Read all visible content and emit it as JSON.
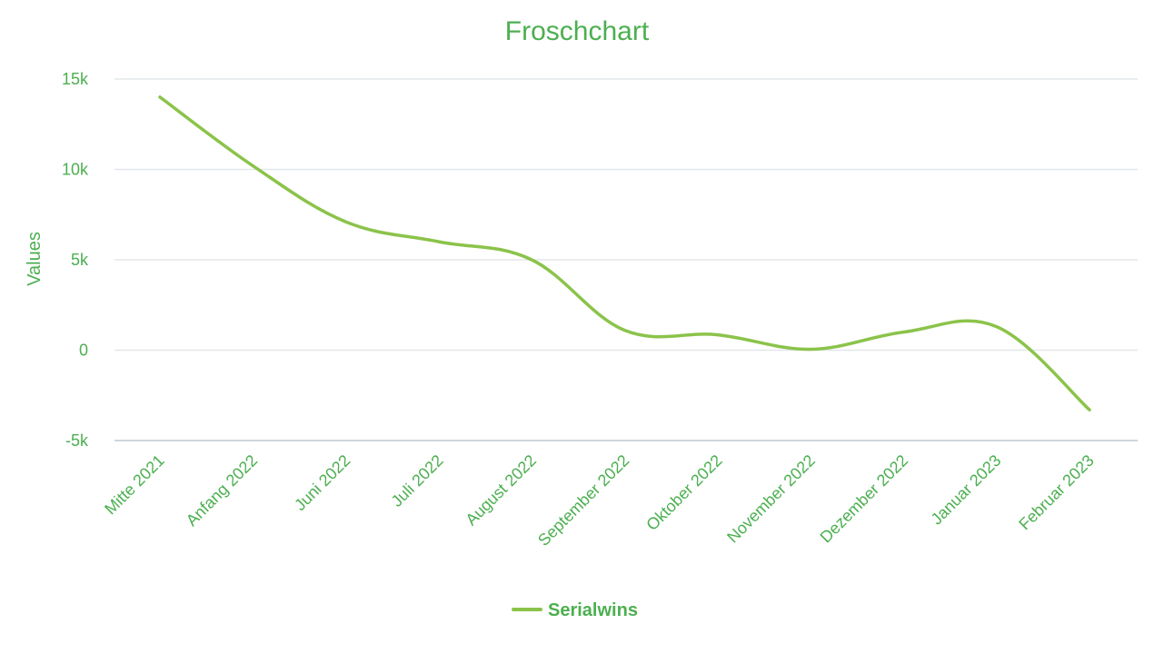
{
  "chart_data": {
    "type": "line",
    "title": "Froschchart",
    "xlabel": "",
    "ylabel": "Values",
    "categories": [
      "Mitte 2021",
      "Anfang 2022",
      "Juni 2022",
      "Juli 2022",
      "August 2022",
      "September 2022",
      "Oktober 2022",
      "November 2022",
      "Dezember 2022",
      "Januar 2023",
      "Februar 2023"
    ],
    "yticks": [
      -5000,
      0,
      5000,
      10000,
      15000
    ],
    "ytick_labels": [
      "-5k",
      "0",
      "5k",
      "10k",
      "15k"
    ],
    "ylim": [
      -5000,
      15000
    ],
    "grid": true,
    "legend_position": "bottom",
    "series": [
      {
        "name": "Serialwins",
        "values": [
          14000,
          10200,
          7100,
          6000,
          5000,
          1100,
          850,
          50,
          1000,
          1300,
          -3300
        ]
      }
    ]
  },
  "colors": {
    "text": "#4caf50",
    "line": "#8bc34a",
    "grid": "#e3e7ea",
    "axis": "#cfd6dc"
  }
}
